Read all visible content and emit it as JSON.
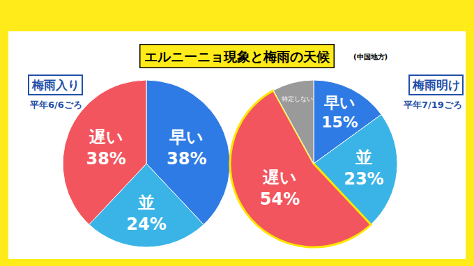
{
  "title": "エルニーニョ現象と梅雨の天候",
  "subtitle": "(中国地方)",
  "chart_data": [
    {
      "type": "pie",
      "title": "梅雨入り",
      "subtitle": "平年6/6ごろ",
      "categories": [
        "早い",
        "並",
        "遅い"
      ],
      "values": [
        38,
        24,
        38
      ],
      "value_labels": [
        "38%",
        "24%",
        "38%"
      ],
      "colors": [
        "#2F7BE5",
        "#3AB4E6",
        "#F2555E"
      ],
      "data_labels": true
    },
    {
      "type": "pie",
      "title": "梅雨明け",
      "subtitle": "平年7/19ごろ",
      "categories": [
        "早い",
        "並",
        "遅い",
        "特定しない"
      ],
      "values": [
        15,
        23,
        54,
        8
      ],
      "value_labels": [
        "15%",
        "23%",
        "54%",
        null
      ],
      "colors": [
        "#2F7BE5",
        "#3AB4E6",
        "#F2555E",
        "#9A9A9A"
      ],
      "data_labels": true
    }
  ]
}
